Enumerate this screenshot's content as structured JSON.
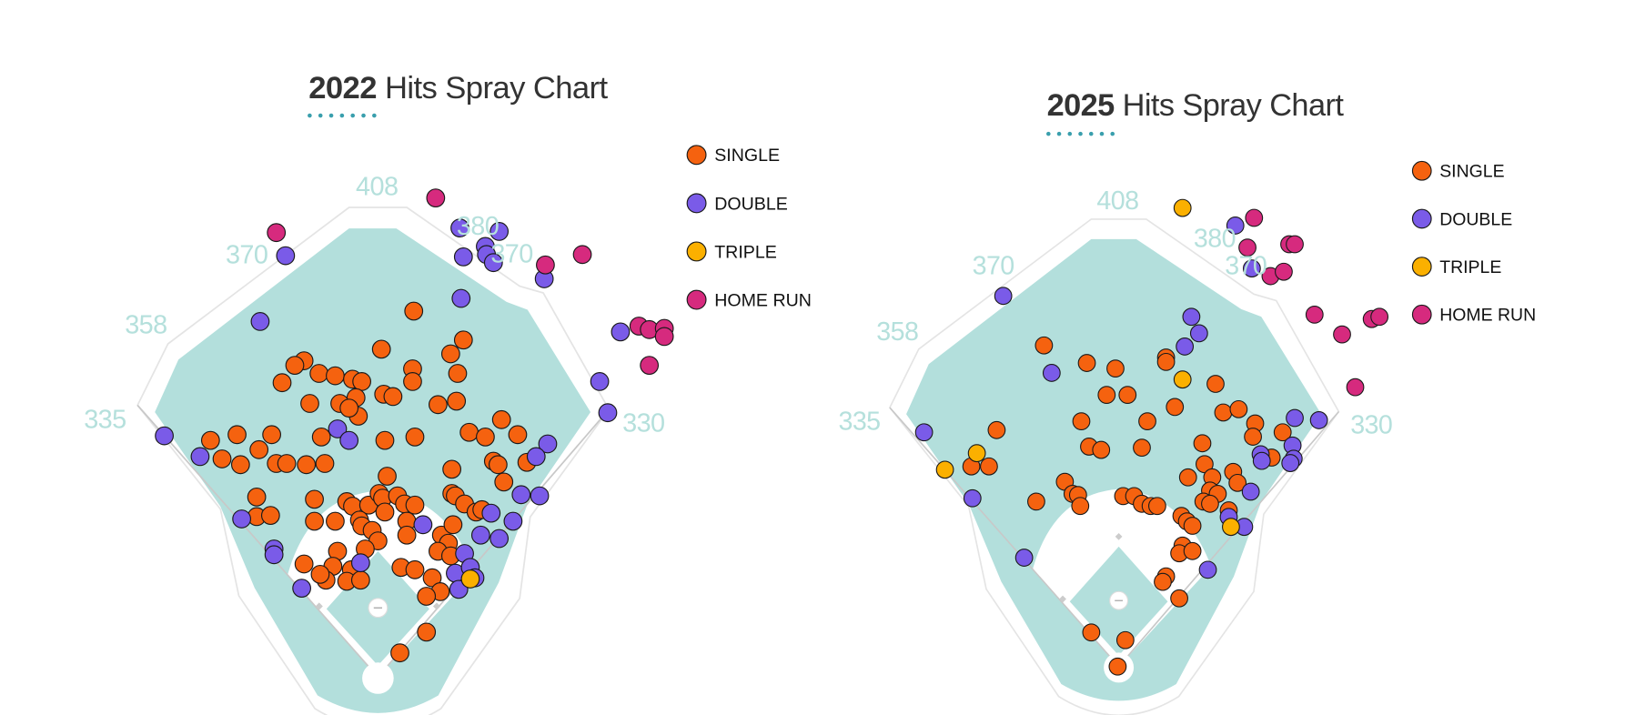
{
  "chart_data": [
    {
      "type": "scatter",
      "title_year": "2022",
      "title_rest": " Hits Spray Chart",
      "units": "feet from home plate (x toward right field, y toward center field)",
      "fence_labels": [
        "408",
        "370",
        "358",
        "335",
        "330",
        "380",
        "370"
      ],
      "colors": {
        "grass": "#b3dfdc",
        "title_dots": "#3a9fad"
      },
      "legend_position": "top-right",
      "series": [
        {
          "name": "SINGLE",
          "color": "#f5620f",
          "points": [
            [
              31,
              317
            ],
            [
              74,
              292
            ],
            [
              3,
              284
            ],
            [
              63,
              280
            ],
            [
              69,
              263
            ],
            [
              -64,
              274
            ],
            [
              -72,
              270
            ],
            [
              -83,
              255
            ],
            [
              -51,
              263
            ],
            [
              -37,
              261
            ],
            [
              -22,
              258
            ],
            [
              -14,
              256
            ],
            [
              30,
              267
            ],
            [
              30,
              256
            ],
            [
              5,
              245
            ],
            [
              13,
              243
            ],
            [
              -19,
              242
            ],
            [
              -33,
              237
            ],
            [
              -59,
              237
            ],
            [
              -17,
              226
            ],
            [
              -25,
              233
            ],
            [
              52,
              236
            ],
            [
              68,
              239
            ],
            [
              107,
              223
            ],
            [
              121,
              210
            ],
            [
              79,
              212
            ],
            [
              93,
              208
            ],
            [
              6,
              205
            ],
            [
              32,
              208
            ],
            [
              -49,
              208
            ],
            [
              -92,
              210
            ],
            [
              -122,
              210
            ],
            [
              -103,
              197
            ],
            [
              -145,
              205
            ],
            [
              -135,
              189
            ],
            [
              -119,
              184
            ],
            [
              -88,
              185
            ],
            [
              -79,
              185
            ],
            [
              -62,
              184
            ],
            [
              -46,
              185
            ],
            [
              64,
              180
            ],
            [
              100,
              187
            ],
            [
              104,
              184
            ],
            [
              129,
              186
            ],
            [
              109,
              169
            ],
            [
              8,
              174
            ],
            [
              -105,
              156
            ],
            [
              -105,
              139
            ],
            [
              -93,
              140
            ],
            [
              -55,
              154
            ],
            [
              -55,
              135
            ],
            [
              -37,
              135
            ],
            [
              -27,
              152
            ],
            [
              -22,
              148
            ],
            [
              -8,
              149
            ],
            [
              1,
              159
            ],
            [
              4,
              155
            ],
            [
              17,
              157
            ],
            [
              23,
              150
            ],
            [
              32,
              149
            ],
            [
              -16,
              136
            ],
            [
              -14,
              131
            ],
            [
              -5,
              127
            ],
            [
              0,
              118
            ],
            [
              6,
              143
            ],
            [
              25,
              135
            ],
            [
              25,
              123
            ],
            [
              64,
              159
            ],
            [
              67,
              157
            ],
            [
              75,
              150
            ],
            [
              85,
              143
            ],
            [
              90,
              145
            ],
            [
              55,
              123
            ],
            [
              61,
              116
            ],
            [
              65,
              132
            ],
            [
              52,
              109
            ],
            [
              63,
              105
            ],
            [
              -11,
              111
            ],
            [
              -35,
              109
            ],
            [
              -39,
              96
            ],
            [
              -23,
              93
            ],
            [
              -27,
              83
            ],
            [
              -15,
              84
            ],
            [
              -45,
              84
            ],
            [
              -50,
              89
            ],
            [
              -64,
              98
            ],
            [
              20,
              95
            ],
            [
              32,
              93
            ],
            [
              47,
              86
            ],
            [
              54,
              74
            ],
            [
              42,
              70
            ],
            [
              42,
              39
            ],
            [
              19,
              21
            ]
          ]
        },
        {
          "name": "DOUBLE",
          "color": "#7a5be8",
          "points": [
            [
              71,
              389
            ],
            [
              105,
              386
            ],
            [
              93,
              373
            ],
            [
              94,
              366
            ],
            [
              100,
              359
            ],
            [
              74,
              364
            ],
            [
              144,
              345
            ],
            [
              -80,
              365
            ],
            [
              72,
              328
            ],
            [
              -102,
              308
            ],
            [
              210,
              299
            ],
            [
              192,
              256
            ],
            [
              199,
              229
            ],
            [
              -185,
              209
            ],
            [
              -154,
              191
            ],
            [
              -35,
              215
            ],
            [
              -25,
              205
            ],
            [
              147,
              202
            ],
            [
              137,
              191
            ],
            [
              124,
              158
            ],
            [
              140,
              157
            ],
            [
              98,
              142
            ],
            [
              117,
              135
            ],
            [
              89,
              123
            ],
            [
              105,
              120
            ],
            [
              -118,
              137
            ],
            [
              -90,
              111
            ],
            [
              -90,
              106
            ],
            [
              39,
              132
            ],
            [
              -66,
              77
            ],
            [
              -15,
              99
            ],
            [
              75,
              107
            ],
            [
              67,
              90
            ],
            [
              80,
              95
            ],
            [
              70,
              76
            ],
            [
              84,
              86
            ]
          ]
        },
        {
          "name": "TRIPLE",
          "color": "#fbb000",
          "points": [
            [
              80,
              85
            ]
          ]
        },
        {
          "name": "HOME RUN",
          "color": "#d62a7e",
          "points": [
            [
              50,
              415
            ],
            [
              -88,
              385
            ],
            [
              145,
              357
            ],
            [
              177,
              366
            ],
            [
              226,
              304
            ],
            [
              235,
              301
            ],
            [
              248,
              302
            ],
            [
              248,
              295
            ],
            [
              235,
              270
            ]
          ]
        }
      ]
    },
    {
      "type": "scatter",
      "title_year": "2025",
      "title_rest": " Hits Spray Chart",
      "units": "feet from home plate (x toward right field, y toward center field)",
      "fence_labels": [
        "408",
        "370",
        "358",
        "335",
        "330",
        "380",
        "370"
      ],
      "colors": {
        "grass": "#b3dfdc",
        "title_dots": "#3a9fad"
      },
      "legend_position": "top-right",
      "series": [
        {
          "name": "SINGLE",
          "color": "#f5620f",
          "points": [
            [
              -68,
              292
            ],
            [
              -29,
              276
            ],
            [
              -3,
              271
            ],
            [
              43,
              281
            ],
            [
              43,
              277
            ],
            [
              -11,
              247
            ],
            [
              8,
              247
            ],
            [
              88,
              257
            ],
            [
              51,
              236
            ],
            [
              95,
              231
            ],
            [
              109,
              234
            ],
            [
              -34,
              223
            ],
            [
              26,
              223
            ],
            [
              -111,
              215
            ],
            [
              124,
              221
            ],
            [
              122,
              209
            ],
            [
              149,
              213
            ],
            [
              139,
              190
            ],
            [
              76,
              203
            ],
            [
              -27,
              200
            ],
            [
              -16,
              197
            ],
            [
              21,
              199
            ],
            [
              -134,
              182
            ],
            [
              -118,
              182
            ],
            [
              78,
              184
            ],
            [
              63,
              172
            ],
            [
              85,
              172
            ],
            [
              104,
              177
            ],
            [
              108,
              167
            ],
            [
              -49,
              168
            ],
            [
              -42,
              157
            ],
            [
              -37,
              156
            ],
            [
              -35,
              146
            ],
            [
              -75,
              150
            ],
            [
              83,
              160
            ],
            [
              90,
              157
            ],
            [
              77,
              150
            ],
            [
              83,
              148
            ],
            [
              100,
              142
            ],
            [
              4,
              155
            ],
            [
              14,
              155
            ],
            [
              21,
              148
            ],
            [
              29,
              146
            ],
            [
              35,
              146
            ],
            [
              57,
              137
            ],
            [
              62,
              132
            ],
            [
              67,
              128
            ],
            [
              58,
              110
            ],
            [
              55,
              103
            ],
            [
              67,
              105
            ],
            [
              43,
              82
            ],
            [
              40,
              77
            ],
            [
              55,
              62
            ],
            [
              -25,
              31
            ],
            [
              6,
              24
            ],
            [
              -1,
              0
            ]
          ]
        },
        {
          "name": "DOUBLE",
          "color": "#7a5be8",
          "points": [
            [
              106,
              401
            ],
            [
              121,
              362
            ],
            [
              -105,
              337
            ],
            [
              66,
              318
            ],
            [
              73,
              303
            ],
            [
              60,
              291
            ],
            [
              -61,
              267
            ],
            [
              160,
              226
            ],
            [
              182,
              224
            ],
            [
              -177,
              213
            ],
            [
              158,
              201
            ],
            [
              129,
              193
            ],
            [
              130,
              187
            ],
            [
              159,
              189
            ],
            [
              156,
              185
            ],
            [
              120,
              159
            ],
            [
              -133,
              153
            ],
            [
              114,
              127
            ],
            [
              100,
              136
            ],
            [
              -86,
              99
            ],
            [
              81,
              88
            ]
          ]
        },
        {
          "name": "TRIPLE",
          "color": "#fbb000",
          "points": [
            [
              58,
              417
            ],
            [
              58,
              261
            ],
            [
              -129,
              194
            ],
            [
              -158,
              179
            ],
            [
              102,
              127
            ]
          ]
        },
        {
          "name": "HOME RUN",
          "color": "#d62a7e",
          "points": [
            [
              123,
              408
            ],
            [
              117,
              381
            ],
            [
              155,
              384
            ],
            [
              160,
              384
            ],
            [
              138,
              355
            ],
            [
              150,
              359
            ],
            [
              178,
              320
            ],
            [
              203,
              302
            ],
            [
              230,
              316
            ],
            [
              237,
              318
            ],
            [
              215,
              254
            ]
          ]
        }
      ]
    }
  ]
}
